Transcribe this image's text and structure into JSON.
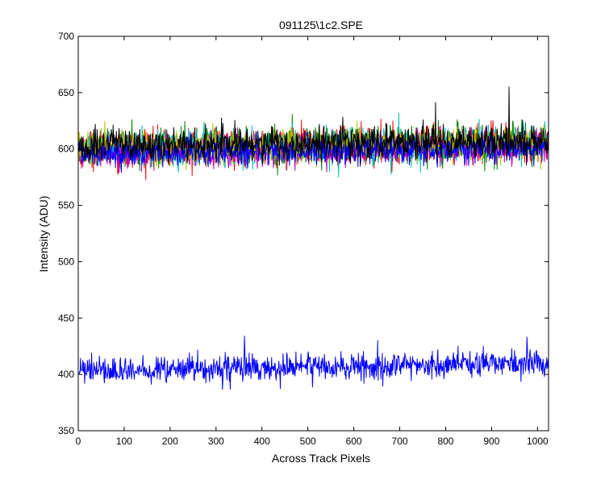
{
  "chart_data": {
    "type": "line",
    "title": "091125\\1c2.SPE",
    "xlabel": "Across Track Pixels",
    "ylabel": "Intensity (ADU)",
    "xlim": [
      0,
      1024
    ],
    "ylim": [
      350,
      700
    ],
    "xticks": [
      0,
      100,
      200,
      300,
      400,
      500,
      600,
      700,
      800,
      900,
      1000
    ],
    "yticks": [
      350,
      400,
      450,
      500,
      550,
      600,
      650,
      700
    ],
    "grid": false,
    "legend": "none",
    "series": [
      {
        "color": "#ff0000",
        "baseline": [
          [
            0,
            600
          ],
          [
            1024,
            604
          ]
        ],
        "noise_sd": 8
      },
      {
        "color": "#008000",
        "baseline": [
          [
            0,
            601
          ],
          [
            1024,
            606
          ]
        ],
        "noise_sd": 8
      },
      {
        "color": "#00bfbf",
        "baseline": [
          [
            0,
            600
          ],
          [
            1024,
            605
          ]
        ],
        "noise_sd": 8
      },
      {
        "color": "#bf00bf",
        "baseline": [
          [
            0,
            597
          ],
          [
            1024,
            602
          ]
        ],
        "noise_sd": 7
      },
      {
        "color": "#bfbf00",
        "baseline": [
          [
            0,
            601
          ],
          [
            1024,
            605
          ]
        ],
        "noise_sd": 7
      },
      {
        "color": "#0000ff",
        "baseline": [
          [
            0,
            597
          ],
          [
            1024,
            601
          ]
        ],
        "noise_sd": 6
      },
      {
        "color": "#000000",
        "baseline": [
          [
            0,
            603
          ],
          [
            1024,
            607
          ]
        ],
        "noise_sd": 7,
        "spikes": [
          [
            938,
            655
          ],
          [
            778,
            641
          ]
        ]
      },
      {
        "color": "#0000ff",
        "baseline": [
          [
            0,
            403
          ],
          [
            1024,
            410
          ]
        ],
        "noise_sd": 6,
        "spikes": [
          [
            362,
            434
          ],
          [
            977,
            433
          ],
          [
            652,
            430
          ]
        ]
      }
    ]
  }
}
